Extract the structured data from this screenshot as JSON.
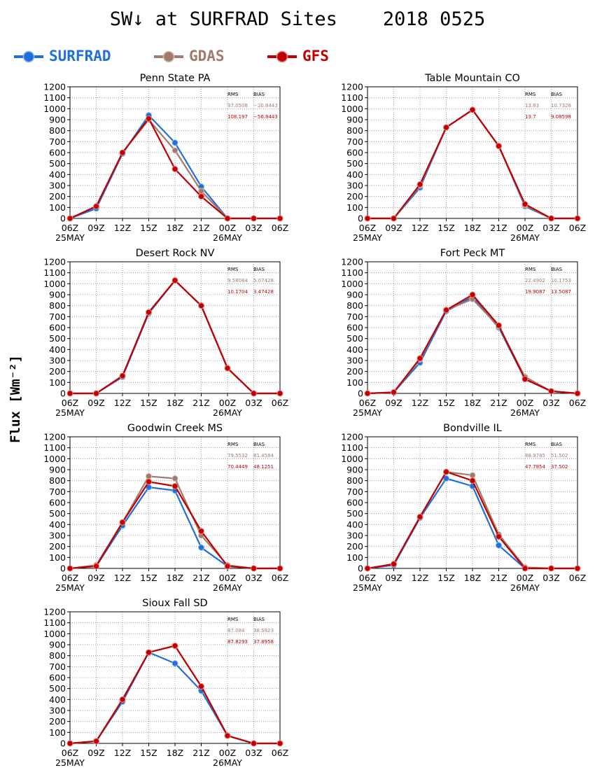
{
  "title": "SW↓ at SURFRAD Sites    2018 0525",
  "ylabel": "Flux [Wm⁻²]",
  "legend": [
    {
      "name": "SURFRAD",
      "color": "#1e6fd9"
    },
    {
      "name": "GDAS",
      "color": "#a07b6c"
    },
    {
      "name": "GFS",
      "color": "#c00000"
    }
  ],
  "stats_headers": {
    "rms": "RMS",
    "bias": "BIAS"
  },
  "chart_data": [
    {
      "type": "line",
      "title": "Penn State PA",
      "x": [
        "06Z",
        "09Z",
        "12Z",
        "15Z",
        "18Z",
        "21Z",
        "00Z",
        "03Z",
        "06Z"
      ],
      "date_labels": [
        "25MAY",
        "",
        "",
        "",
        "",
        "",
        "26MAY",
        "",
        ""
      ],
      "ylim": [
        0,
        1200
      ],
      "yticks": [
        0,
        100,
        200,
        300,
        400,
        500,
        600,
        700,
        800,
        900,
        1000,
        1100,
        1200
      ],
      "grid": true,
      "series": [
        {
          "name": "SURFRAD",
          "values": [
            0,
            90,
            590,
            940,
            690,
            290,
            0,
            0,
            0
          ]
        },
        {
          "name": "GDAS",
          "values": [
            0,
            110,
            600,
            900,
            620,
            250,
            0,
            0,
            0
          ]
        },
        {
          "name": "GFS",
          "values": [
            0,
            110,
            600,
            910,
            450,
            200,
            0,
            0,
            0
          ]
        }
      ],
      "stats": [
        {
          "rms": "37.0508",
          "bias": "−20.8443"
        },
        {
          "rms": "108.197",
          "bias": "−56.8443"
        }
      ]
    },
    {
      "type": "line",
      "title": "Table Mountain CO",
      "x": [
        "06Z",
        "09Z",
        "12Z",
        "15Z",
        "18Z",
        "21Z",
        "00Z",
        "03Z",
        "06Z"
      ],
      "date_labels": [
        "25MAY",
        "",
        "",
        "",
        "",
        "",
        "26MAY",
        "",
        ""
      ],
      "ylim": [
        0,
        1200
      ],
      "yticks": [
        0,
        100,
        200,
        300,
        400,
        500,
        600,
        700,
        800,
        900,
        1000,
        1100,
        1200
      ],
      "grid": true,
      "series": [
        {
          "name": "SURFRAD",
          "values": [
            0,
            0,
            280,
            830,
            990,
            660,
            110,
            0,
            0
          ]
        },
        {
          "name": "GDAS",
          "values": [
            0,
            0,
            300,
            830,
            990,
            660,
            120,
            0,
            0
          ]
        },
        {
          "name": "GFS",
          "values": [
            0,
            0,
            310,
            830,
            990,
            660,
            130,
            0,
            0
          ]
        }
      ],
      "stats": [
        {
          "rms": "13.83",
          "bias": "10.7328"
        },
        {
          "rms": "13.7",
          "bias": "9.08598"
        }
      ]
    },
    {
      "type": "line",
      "title": "Desert Rock NV",
      "x": [
        "06Z",
        "09Z",
        "12Z",
        "15Z",
        "18Z",
        "21Z",
        "00Z",
        "03Z",
        "06Z"
      ],
      "date_labels": [
        "25MAY",
        "",
        "",
        "",
        "",
        "",
        "26MAY",
        "",
        ""
      ],
      "ylim": [
        0,
        1200
      ],
      "yticks": [
        0,
        100,
        200,
        300,
        400,
        500,
        600,
        700,
        800,
        900,
        1000,
        1100,
        1200
      ],
      "grid": true,
      "series": [
        {
          "name": "SURFRAD",
          "values": [
            0,
            0,
            150,
            730,
            1030,
            800,
            230,
            0,
            0
          ]
        },
        {
          "name": "GDAS",
          "values": [
            0,
            0,
            160,
            740,
            1030,
            800,
            230,
            0,
            0
          ]
        },
        {
          "name": "GFS",
          "values": [
            0,
            0,
            160,
            740,
            1030,
            800,
            230,
            0,
            0
          ]
        }
      ],
      "stats": [
        {
          "rms": "9.58084",
          "bias": "5.07428"
        },
        {
          "rms": "10.1704",
          "bias": "3.47428"
        }
      ]
    },
    {
      "type": "line",
      "title": "Fort Peck MT",
      "x": [
        "06Z",
        "09Z",
        "12Z",
        "15Z",
        "18Z",
        "21Z",
        "00Z",
        "03Z",
        "06Z"
      ],
      "date_labels": [
        "25MAY",
        "",
        "",
        "",
        "",
        "",
        "26MAY",
        "",
        ""
      ],
      "ylim": [
        0,
        1200
      ],
      "yticks": [
        0,
        100,
        200,
        300,
        400,
        500,
        600,
        700,
        800,
        900,
        1000,
        1100,
        1200
      ],
      "grid": true,
      "series": [
        {
          "name": "SURFRAD",
          "values": [
            0,
            10,
            280,
            750,
            880,
            600,
            130,
            20,
            0
          ]
        },
        {
          "name": "GDAS",
          "values": [
            0,
            10,
            310,
            760,
            860,
            610,
            150,
            20,
            0
          ]
        },
        {
          "name": "GFS",
          "values": [
            0,
            10,
            320,
            760,
            900,
            620,
            130,
            20,
            0
          ]
        }
      ],
      "stats": [
        {
          "rms": "22.4902",
          "bias": "10.1753"
        },
        {
          "rms": "19.9087",
          "bias": "13.5087"
        }
      ]
    },
    {
      "type": "line",
      "title": "Goodwin Creek MS",
      "x": [
        "06Z",
        "09Z",
        "12Z",
        "15Z",
        "18Z",
        "21Z",
        "00Z",
        "03Z",
        "06Z"
      ],
      "date_labels": [
        "25MAY",
        "",
        "",
        "",
        "",
        "",
        "26MAY",
        "",
        ""
      ],
      "ylim": [
        0,
        1200
      ],
      "yticks": [
        0,
        100,
        200,
        300,
        400,
        500,
        600,
        700,
        800,
        900,
        1000,
        1100,
        1200
      ],
      "grid": true,
      "series": [
        {
          "name": "SURFRAD",
          "values": [
            0,
            20,
            390,
            740,
            710,
            190,
            20,
            0,
            0
          ]
        },
        {
          "name": "GDAS",
          "values": [
            0,
            30,
            420,
            840,
            820,
            300,
            30,
            0,
            0
          ]
        },
        {
          "name": "GFS",
          "values": [
            0,
            20,
            420,
            790,
            750,
            340,
            20,
            0,
            0
          ]
        }
      ],
      "stats": [
        {
          "rms": "79.5532",
          "bias": "81.4584"
        },
        {
          "rms": "70.4449",
          "bias": "48.1251"
        }
      ]
    },
    {
      "type": "line",
      "title": "Bondville IL",
      "x": [
        "06Z",
        "09Z",
        "12Z",
        "15Z",
        "18Z",
        "21Z",
        "00Z",
        "03Z",
        "06Z"
      ],
      "date_labels": [
        "25MAY",
        "",
        "",
        "",
        "",
        "",
        "26MAY",
        "",
        ""
      ],
      "ylim": [
        0,
        1200
      ],
      "yticks": [
        0,
        100,
        200,
        300,
        400,
        500,
        600,
        700,
        800,
        900,
        1000,
        1100,
        1200
      ],
      "grid": true,
      "series": [
        {
          "name": "SURFRAD",
          "values": [
            0,
            30,
            460,
            820,
            750,
            210,
            0,
            0,
            0
          ]
        },
        {
          "name": "GDAS",
          "values": [
            0,
            40,
            470,
            880,
            850,
            310,
            10,
            0,
            0
          ]
        },
        {
          "name": "GFS",
          "values": [
            0,
            40,
            470,
            880,
            800,
            290,
            0,
            0,
            0
          ]
        }
      ],
      "stats": [
        {
          "rms": "88.9785",
          "bias": "51.502"
        },
        {
          "rms": "47.7854",
          "bias": "37.502"
        }
      ]
    },
    {
      "type": "line",
      "title": "Sioux Fall SD",
      "x": [
        "06Z",
        "09Z",
        "12Z",
        "15Z",
        "18Z",
        "21Z",
        "00Z",
        "03Z",
        "06Z"
      ],
      "date_labels": [
        "25MAY",
        "",
        "",
        "",
        "",
        "",
        "26MAY",
        "",
        ""
      ],
      "ylim": [
        0,
        1200
      ],
      "yticks": [
        0,
        100,
        200,
        300,
        400,
        500,
        600,
        700,
        800,
        900,
        1000,
        1100,
        1200
      ],
      "grid": true,
      "series": [
        {
          "name": "SURFRAD",
          "values": [
            0,
            20,
            380,
            830,
            730,
            480,
            70,
            0,
            0
          ]
        },
        {
          "name": "GDAS",
          "values": [
            0,
            20,
            400,
            830,
            890,
            520,
            70,
            0,
            0
          ]
        },
        {
          "name": "GFS",
          "values": [
            0,
            20,
            400,
            830,
            890,
            520,
            70,
            0,
            0
          ]
        }
      ],
      "stats": [
        {
          "rms": "87.084",
          "bias": "38.5823"
        },
        {
          "rms": "87.8293",
          "bias": "37.8958"
        }
      ]
    }
  ]
}
